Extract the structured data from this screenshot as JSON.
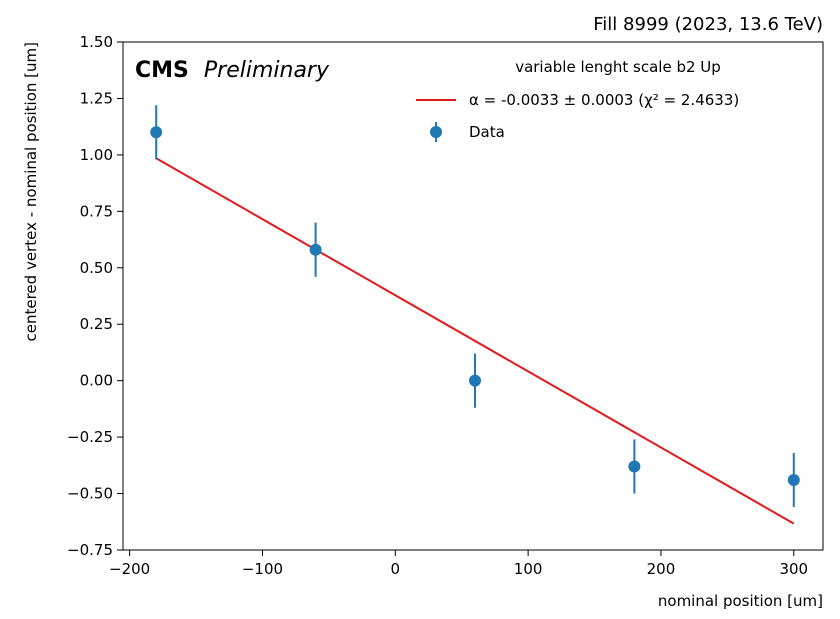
{
  "chart_data": {
    "type": "scatter",
    "top_right_label": "Fill 8999 (2023, 13.6 TeV)",
    "experiment_label": "CMS",
    "experiment_sublabel": "Preliminary",
    "xlabel": "nominal position [um]",
    "ylabel": "centered vertex - nominal position [um]",
    "xlim": [
      -205,
      322
    ],
    "ylim": [
      -0.75,
      1.5
    ],
    "xticks": [
      -200,
      -100,
      0,
      100,
      200,
      300
    ],
    "xtick_labels": [
      "−200",
      "−100",
      "0",
      "100",
      "200",
      "300"
    ],
    "yticks": [
      -0.75,
      -0.5,
      -0.25,
      0.0,
      0.25,
      0.5,
      0.75,
      1.0,
      1.25,
      1.5
    ],
    "ytick_labels": [
      "−0.75",
      "−0.50",
      "−0.25",
      "0.00",
      "0.25",
      "0.50",
      "0.75",
      "1.00",
      "1.25",
      "1.50"
    ],
    "legend": {
      "title": "variable lenght scale b2 Up",
      "placement": "top-right",
      "fit_entry": "α = -0.0033 ± 0.0003 (χ² = 2.4633)",
      "data_entry": "Data"
    },
    "series": [
      {
        "name": "Data",
        "kind": "errorbar",
        "color": "#1f77b4",
        "x": [
          -180,
          -60,
          60,
          180,
          300
        ],
        "y": [
          1.1,
          0.58,
          0.0,
          -0.38,
          -0.44
        ],
        "yerr": [
          0.12,
          0.12,
          0.12,
          0.12,
          0.12
        ]
      },
      {
        "name": "α = -0.0033 ± 0.0003 (χ² = 2.4633)",
        "kind": "line",
        "color": "#e31a1c",
        "x": [
          -180,
          300
        ],
        "y": [
          0.985,
          -0.633
        ]
      }
    ]
  }
}
